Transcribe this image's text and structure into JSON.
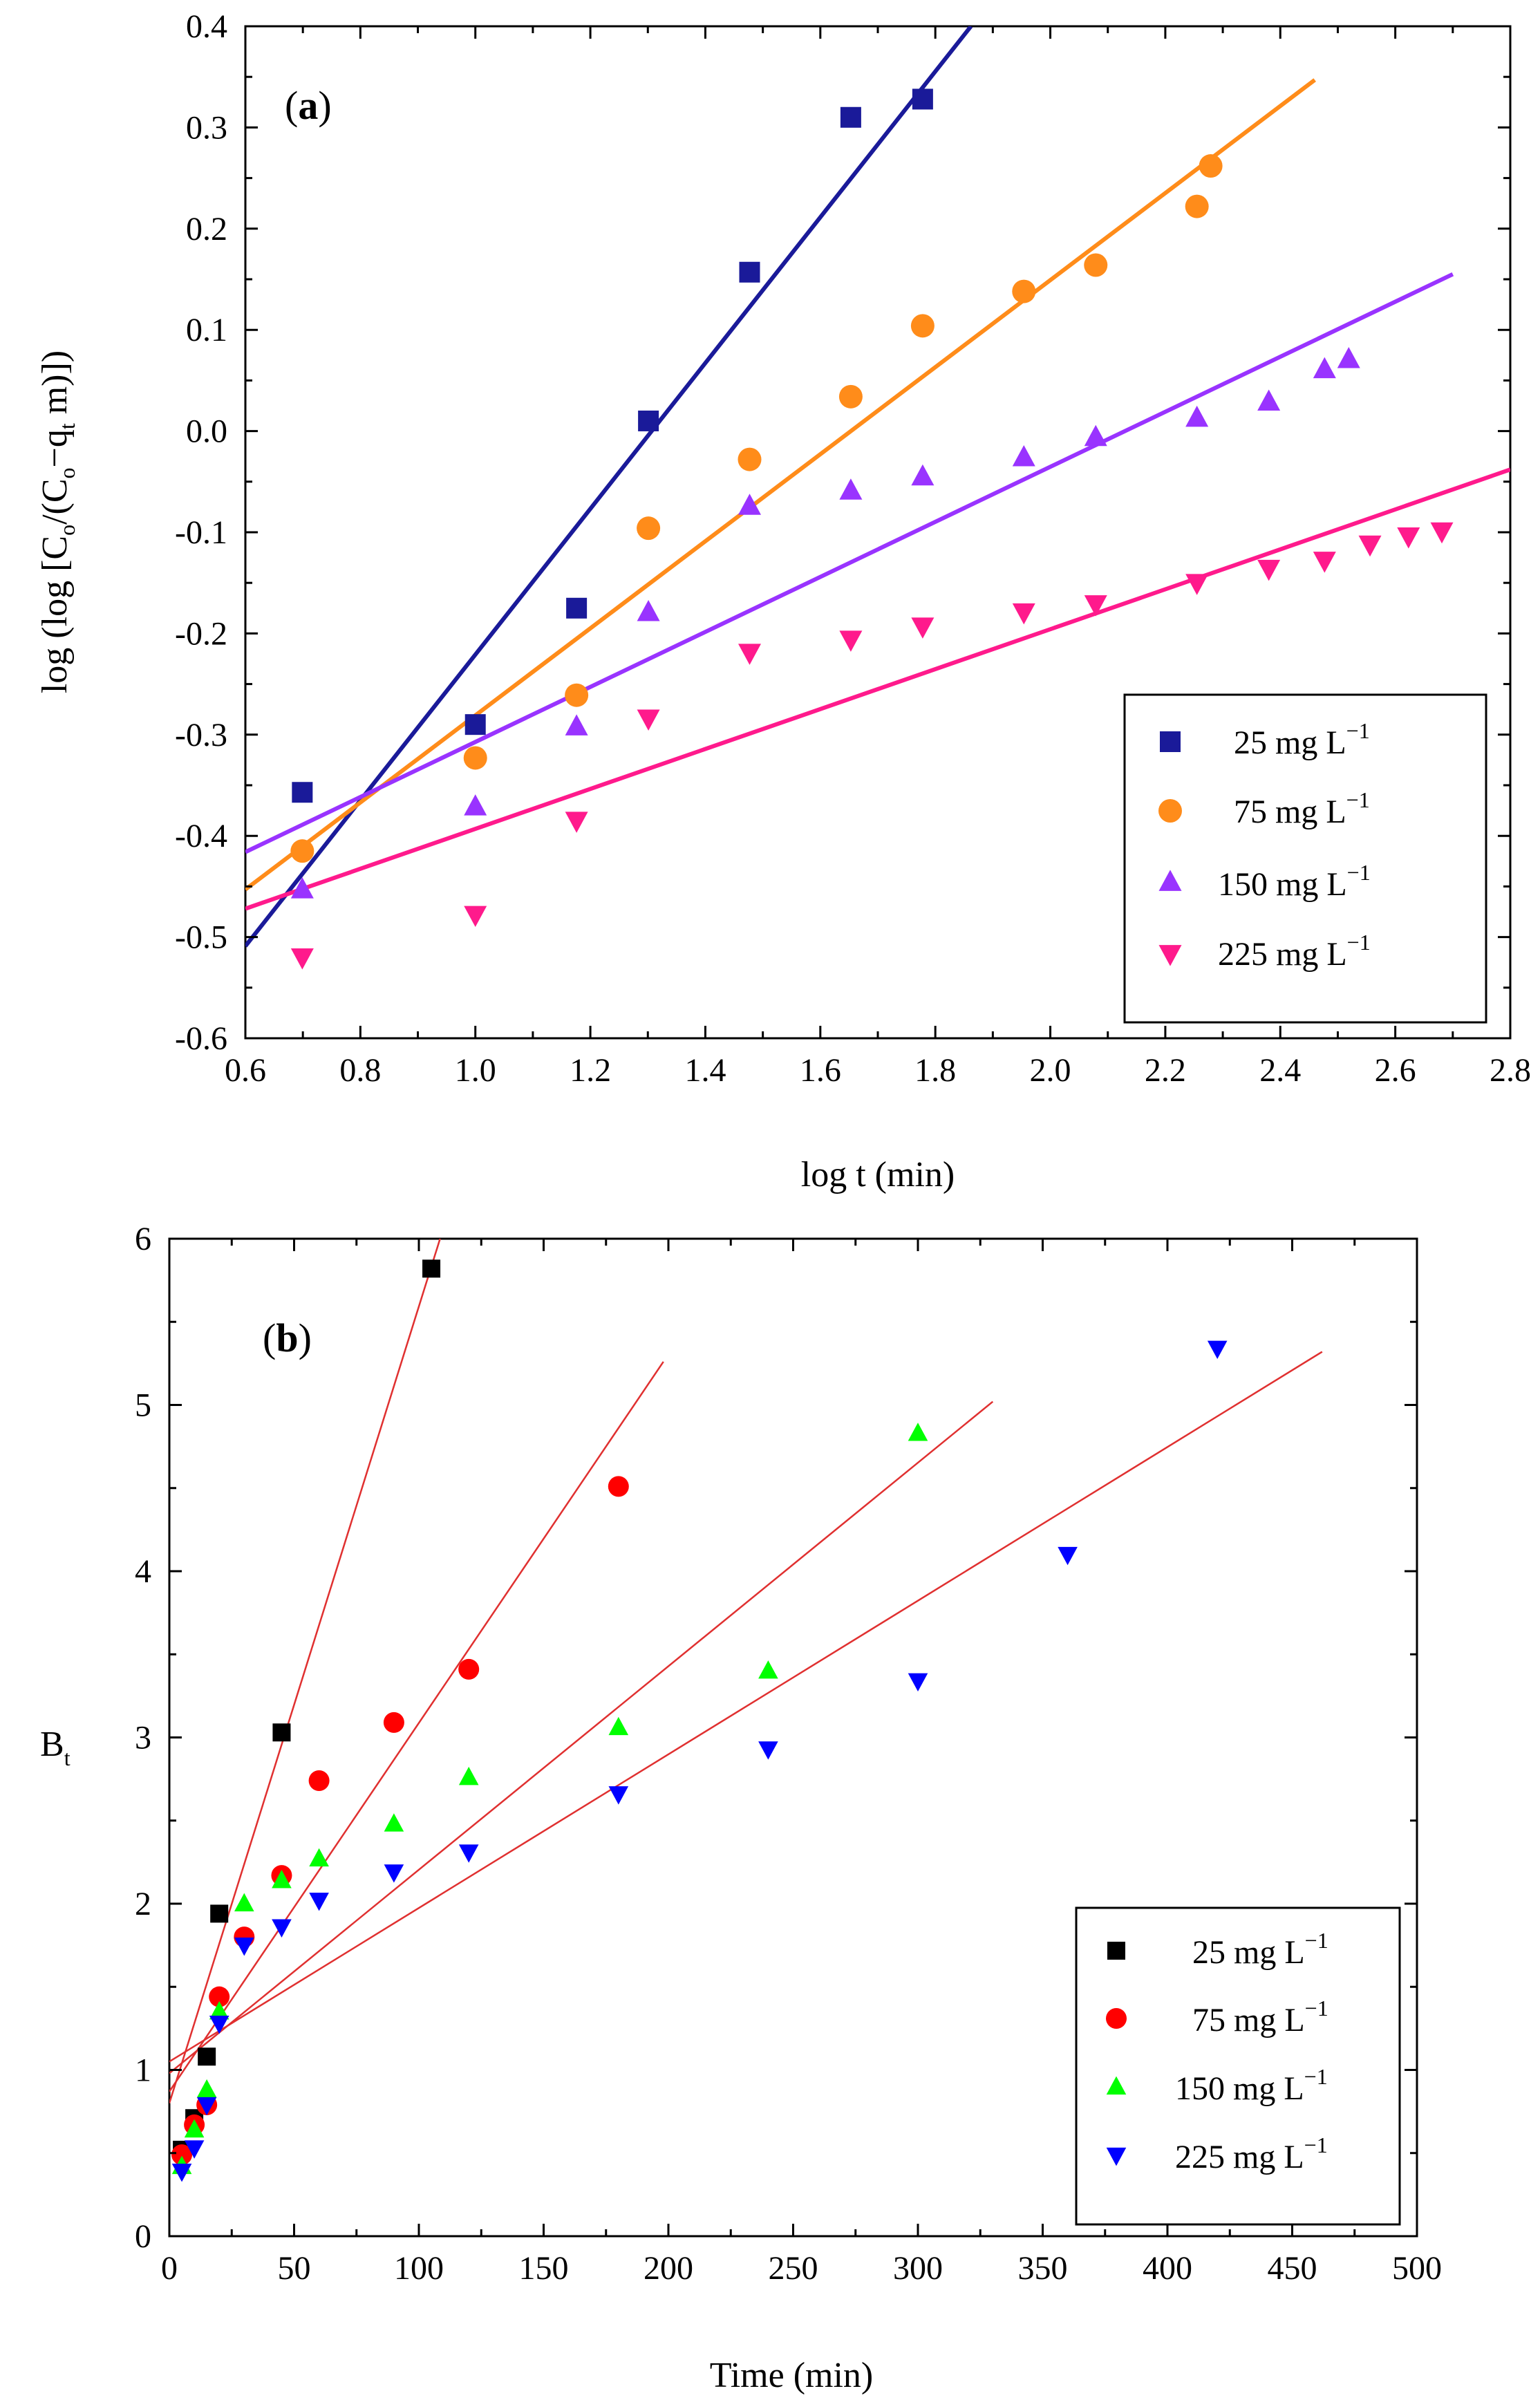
{
  "chart_data": [
    {
      "panel_label": "a",
      "type": "scatter",
      "xlabel": "log t (min)",
      "ylabel": {
        "pre": "log (log [C",
        "s1": "o",
        "mid": "/(C",
        "s2": "o",
        "mid2": "−q",
        "s3": "t",
        "post": " m)])"
      },
      "xlim": [
        0.6,
        2.8
      ],
      "ylim": [
        -0.6,
        0.4
      ],
      "xticks": [
        "0.6",
        "0.8",
        "1.0",
        "1.2",
        "1.4",
        "1.6",
        "1.8",
        "2.0",
        "2.2",
        "2.4",
        "2.6",
        "2.8"
      ],
      "yticks": [
        "-0.6",
        "-0.5",
        "-0.4",
        "-0.3",
        "-0.2",
        "-0.1",
        "0.0",
        "0.1",
        "0.2",
        "0.3",
        "0.4"
      ],
      "legend_position": "bottom-right",
      "series": [
        {
          "name": "25 mg L",
          "sup": "−1",
          "marker": "square",
          "color": "#1a1a99",
          "x": [
            0.699,
            1.0,
            1.176,
            1.301,
            1.477,
            1.653,
            1.778
          ],
          "y": [
            -0.357,
            -0.29,
            -0.175,
            0.01,
            0.157,
            0.31,
            0.328
          ],
          "fit": {
            "color": "#1a1a99",
            "x": [
              0.6,
              1.862
            ],
            "y": [
              -0.509,
              0.4
            ]
          }
        },
        {
          "name": "75 mg L",
          "sup": "−1",
          "marker": "circle",
          "color": "#ff8c1a",
          "x": [
            0.699,
            1.0,
            1.176,
            1.301,
            1.477,
            1.653,
            1.778,
            1.954,
            2.079,
            2.255,
            2.279
          ],
          "y": [
            -0.415,
            -0.323,
            -0.261,
            -0.096,
            -0.028,
            0.034,
            0.104,
            0.138,
            0.164,
            0.222,
            0.262
          ],
          "fit": {
            "color": "#ff8c1a",
            "x": [
              0.6,
              2.46
            ],
            "y": [
              -0.453,
              0.347
            ]
          }
        },
        {
          "name": "150 mg L",
          "sup": "−1",
          "marker": "triangle-up",
          "color": "#9933ff",
          "x": [
            0.699,
            1.0,
            1.176,
            1.301,
            1.477,
            1.653,
            1.778,
            1.954,
            2.079,
            2.255,
            2.38,
            2.477,
            2.519
          ],
          "y": [
            -0.453,
            -0.371,
            -0.292,
            -0.179,
            -0.074,
            -0.059,
            -0.045,
            -0.026,
            -0.006,
            0.013,
            0.029,
            0.061,
            0.071
          ],
          "fit": {
            "color": "#9933ff",
            "x": [
              0.6,
              2.7
            ],
            "y": [
              -0.416,
              0.155
            ]
          }
        },
        {
          "name": "225 mg L",
          "sup": "−1",
          "marker": "triangle-down",
          "color": "#ff1a8c",
          "x": [
            0.699,
            1.0,
            1.176,
            1.301,
            1.477,
            1.653,
            1.778,
            1.954,
            2.079,
            2.255,
            2.38,
            2.477,
            2.556,
            2.623,
            2.681
          ],
          "y": [
            -0.52,
            -0.478,
            -0.385,
            -0.284,
            -0.219,
            -0.206,
            -0.193,
            -0.179,
            -0.171,
            -0.15,
            -0.136,
            -0.128,
            -0.112,
            -0.104,
            -0.099
          ],
          "fit": {
            "color": "#ff1a8c",
            "x": [
              0.6,
              2.8
            ],
            "y": [
              -0.472,
              -0.038
            ]
          }
        }
      ]
    },
    {
      "panel_label": "b",
      "type": "scatter",
      "xlabel": "Time (min)",
      "ylabel": {
        "pre": "B",
        "sub": "t"
      },
      "xlim": [
        0,
        500
      ],
      "ylim": [
        0,
        6
      ],
      "xticks": [
        "0",
        "50",
        "100",
        "150",
        "200",
        "250",
        "300",
        "350",
        "400",
        "450",
        "500"
      ],
      "yticks": [
        "0",
        "1",
        "2",
        "3",
        "4",
        "5",
        "6"
      ],
      "legend_position": "bottom-right",
      "series": [
        {
          "name": "25 mg L",
          "sup": "−1",
          "marker": "square",
          "color": "#000000",
          "x": [
            5,
            10,
            15,
            20,
            45,
            105
          ],
          "y": [
            0.52,
            0.71,
            1.08,
            1.94,
            3.03,
            5.82
          ],
          "fit": {
            "color": "#e03030",
            "x": [
              0,
              108.5
            ],
            "y": [
              0.8,
              6.0
            ]
          }
        },
        {
          "name": "75 mg L",
          "sup": "−1",
          "marker": "circle",
          "color": "#ff0000",
          "x": [
            5,
            10,
            15,
            20,
            30,
            45,
            60,
            90,
            120,
            180
          ],
          "y": [
            0.49,
            0.67,
            0.79,
            1.44,
            1.8,
            2.17,
            2.74,
            3.09,
            3.41,
            4.51
          ],
          "fit": {
            "color": "#e03030",
            "x": [
              0,
              198
            ],
            "y": [
              0.87,
              5.26
            ]
          }
        },
        {
          "name": "150 mg L",
          "sup": "−1",
          "marker": "triangle-up",
          "color": "#00ff00",
          "x": [
            5,
            10,
            15,
            20,
            30,
            45,
            60,
            90,
            120,
            180,
            240,
            300
          ],
          "y": [
            0.42,
            0.64,
            0.88,
            1.35,
            2.0,
            2.14,
            2.27,
            2.48,
            2.76,
            3.06,
            3.4,
            4.83
          ],
          "fit": {
            "color": "#e03030",
            "x": [
              0,
              330
            ],
            "y": [
              0.98,
              5.02
            ]
          }
        },
        {
          "name": "225 mg L",
          "sup": "−1",
          "marker": "triangle-down",
          "color": "#0000ff",
          "x": [
            5,
            10,
            15,
            20,
            30,
            45,
            60,
            90,
            120,
            180,
            240,
            300,
            360,
            420
          ],
          "y": [
            0.39,
            0.53,
            0.79,
            1.28,
            1.75,
            1.86,
            2.02,
            2.19,
            2.31,
            2.66,
            2.93,
            3.34,
            4.1,
            5.34
          ],
          "fit": {
            "color": "#e03030",
            "x": [
              0,
              462
            ],
            "y": [
              1.05,
              5.32
            ]
          }
        }
      ]
    }
  ]
}
